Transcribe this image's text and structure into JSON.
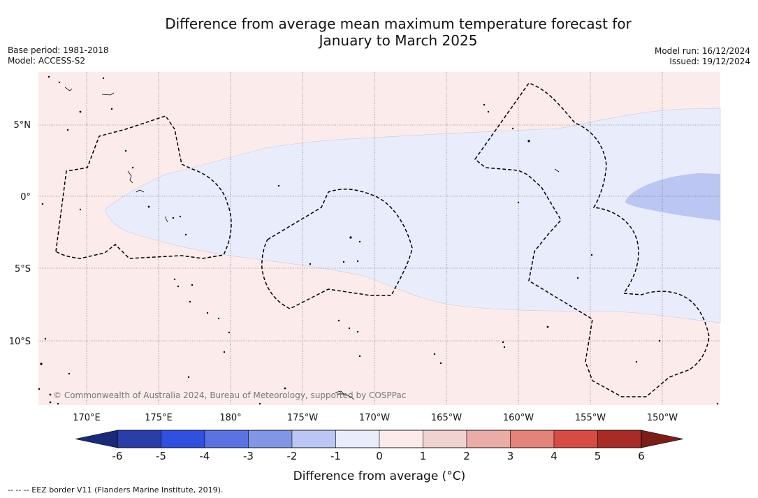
{
  "title_line1": "Difference from average mean maximum temperature forecast for",
  "title_line2": "January to March 2025",
  "base_period": "Base period: 1981-2018",
  "model": "Model: ACCESS-S2",
  "model_run": "Model run: 16/12/2024",
  "issued": "Issued: 19/12/2024",
  "lon_labels": [
    "170°E",
    "175°E",
    "180°",
    "175°W",
    "170°W",
    "165°W",
    "160°W",
    "155°W",
    "150°W"
  ],
  "lat_labels": [
    "5°N",
    "0°",
    "5°S",
    "10°S"
  ],
  "copyright": "© Commonwealth of Australia 2024, Bureau of Meteorology, supported by COSPPac",
  "colorbar": {
    "ticks": [
      "-6",
      "-5",
      "-4",
      "-3",
      "-2",
      "-1",
      "0",
      "1",
      "2",
      "3",
      "4",
      "5",
      "6"
    ],
    "colors": [
      "#2a3ea8",
      "#3050e0",
      "#5a73e0",
      "#8396e6",
      "#bcc6f2",
      "#e9ecfb",
      "#fbeceb",
      "#f0d2d0",
      "#eaaca6",
      "#e48379",
      "#d64c42",
      "#a82b27"
    ],
    "low_extend": "#1b2a78",
    "high_extend": "#7a1e1a",
    "label": "Difference from average (°C)"
  },
  "legend_eez": "-- -- -- EEZ border V11 (Flanders Marine Institute, 2019)."
}
